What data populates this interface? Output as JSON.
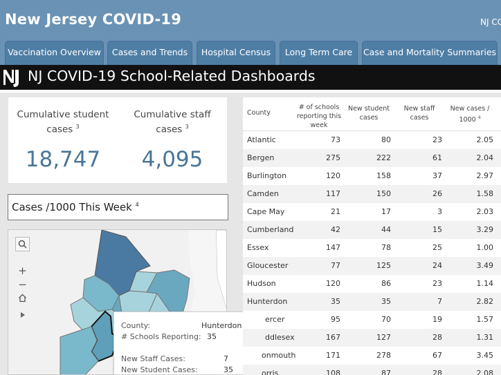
{
  "header": {
    "title": "New Jersey COVID-19",
    "right_text": "NJ CO"
  },
  "tabs": [
    {
      "label": "Vaccination Overview"
    },
    {
      "label": "Cases and Trends"
    },
    {
      "label": "Hospital Census"
    },
    {
      "label": "Long Term Care"
    },
    {
      "label": "Case and Mortality Summaries"
    }
  ],
  "banner": {
    "title": "NJ COVID-19 School-Related Dashboards"
  },
  "kpis": {
    "student": {
      "label_line1": "Cumulative student",
      "label_line2": "cases",
      "sup": "3",
      "value": "18,747"
    },
    "staff": {
      "label_line1": "Cumulative staff",
      "label_line2": "cases",
      "sup": "3",
      "value": "4,095"
    }
  },
  "map_section": {
    "title": "Cases /1000 This Week",
    "sup": "4"
  },
  "tooltip": {
    "county_label": "County:",
    "county_value": "Hunterdon",
    "schools_label": "# Schools Reporting:",
    "schools_value": "35",
    "staff_label": "New Staff Cases:",
    "staff_value": "7",
    "student_label": "New Student Cases:",
    "student_value": "35"
  },
  "table": {
    "headers": {
      "county": "County",
      "schools": [
        "# of schools",
        "reporting this",
        "week"
      ],
      "student": [
        "New student",
        "cases"
      ],
      "staff": [
        "New staff",
        "cases"
      ],
      "per1000": [
        "New cases /",
        "1000"
      ],
      "per1000_sup": "4"
    },
    "rows": [
      {
        "county": "Atlantic",
        "schools": "73",
        "student": "80",
        "staff": "23",
        "per1000": "2.05"
      },
      {
        "county": "Bergen",
        "schools": "275",
        "student": "222",
        "staff": "61",
        "per1000": "2.04"
      },
      {
        "county": "Burlington",
        "schools": "120",
        "student": "158",
        "staff": "37",
        "per1000": "2.97"
      },
      {
        "county": "Camden",
        "schools": "117",
        "student": "150",
        "staff": "26",
        "per1000": "1.58"
      },
      {
        "county": "Cape May",
        "schools": "21",
        "student": "17",
        "staff": "3",
        "per1000": "2.03"
      },
      {
        "county": "Cumberland",
        "schools": "42",
        "student": "44",
        "staff": "15",
        "per1000": "3.29"
      },
      {
        "county": "Essex",
        "schools": "147",
        "student": "78",
        "staff": "25",
        "per1000": "1.00"
      },
      {
        "county": "Gloucester",
        "schools": "77",
        "student": "125",
        "staff": "24",
        "per1000": "3.49"
      },
      {
        "county": "Hudson",
        "schools": "120",
        "student": "86",
        "staff": "23",
        "per1000": "1.14"
      },
      {
        "county": "Hunterdon",
        "schools": "35",
        "student": "35",
        "staff": "7",
        "per1000": "2.82"
      },
      {
        "county": "ercer",
        "schools": "95",
        "student": "70",
        "staff": "19",
        "per1000": "1.57"
      },
      {
        "county": "ddlesex",
        "schools": "167",
        "student": "127",
        "staff": "28",
        "per1000": "1.31"
      },
      {
        "county": "onmouth",
        "schools": "171",
        "student": "278",
        "staff": "67",
        "per1000": "3.45"
      },
      {
        "county": "orris",
        "schools": "108",
        "student": "87",
        "staff": "28",
        "per1000": "2.08"
      }
    ]
  },
  "colors": {
    "header": "#6a92b4",
    "tab": "#4f7ea5",
    "kpi_value": "#4a7697",
    "banner": "#111111"
  }
}
